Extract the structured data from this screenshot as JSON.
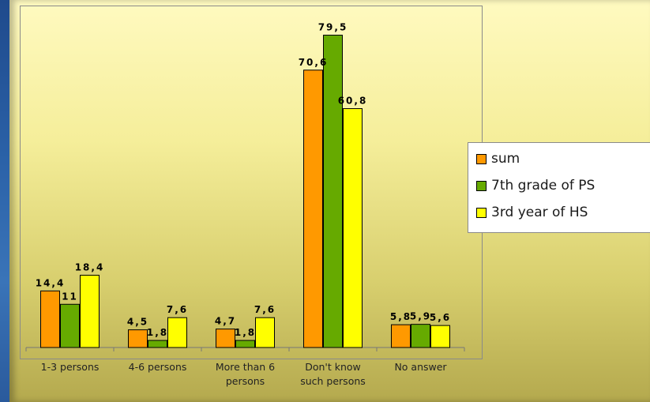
{
  "chart_data": {
    "type": "bar",
    "categories": [
      "1-3 persons",
      "4-6 persons",
      "More than  6 persons",
      "Don't know such persons",
      "No answer"
    ],
    "category_lines": [
      [
        "1-3 persons"
      ],
      [
        "4-6 persons"
      ],
      [
        "More than  6",
        "persons"
      ],
      [
        "Don't know",
        "such persons"
      ],
      [
        "No answer"
      ]
    ],
    "series": [
      {
        "name": "sum",
        "values": [
          14.4,
          4.5,
          4.7,
          70.6,
          5.8
        ],
        "labels": [
          "14,4",
          "4,5",
          "4,7",
          "70,6",
          "5,8"
        ],
        "color": "#ff9900"
      },
      {
        "name": "7th grade of PS",
        "values": [
          11,
          1.8,
          1.8,
          79.5,
          5.9
        ],
        "labels": [
          "11",
          "1,8",
          "1,8",
          "79,5",
          "5,9"
        ],
        "color": "#66aa00"
      },
      {
        "name": "3rd year of HS",
        "values": [
          18.4,
          7.6,
          7.6,
          60.8,
          5.6
        ],
        "labels": [
          "18,4",
          "7,6",
          "7,6",
          "60,8",
          "5,6"
        ],
        "color": "#ffff00"
      }
    ],
    "ylim": [
      0,
      80
    ],
    "legend_position": "right",
    "grid": false
  }
}
